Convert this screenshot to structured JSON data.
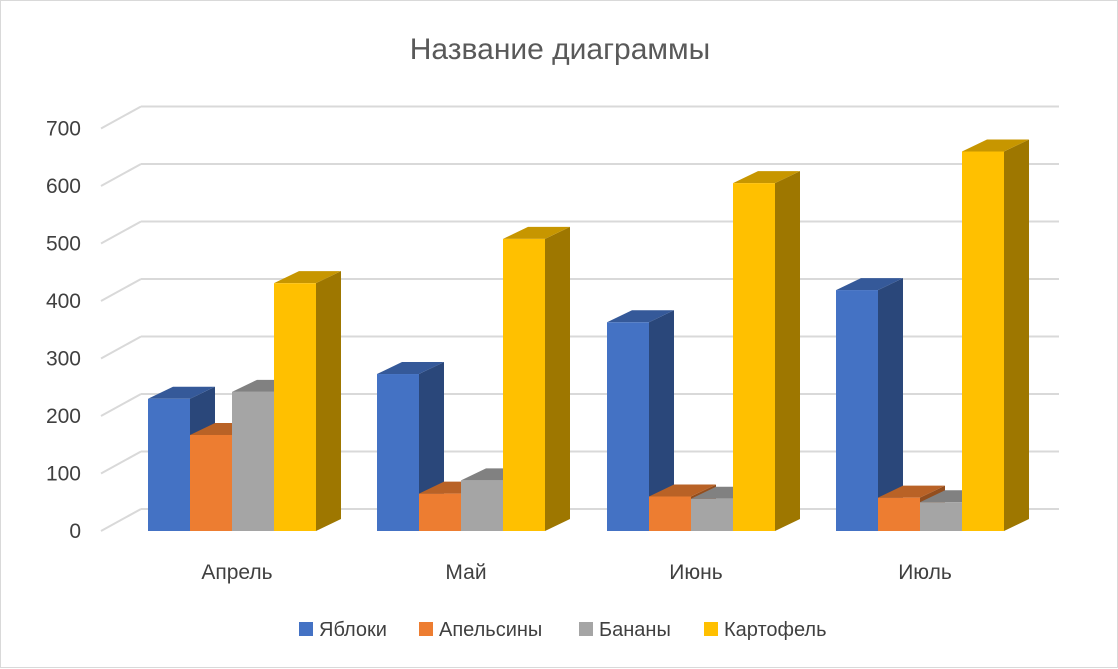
{
  "chart_data": {
    "type": "bar",
    "title": "Название диаграммы",
    "categories": [
      "Апрель",
      "Май",
      "Июнь",
      "Июль"
    ],
    "series": [
      {
        "name": "Яблоки",
        "values": [
          230,
          273,
          363,
          419
        ],
        "color": "#4472C4"
      },
      {
        "name": "Апельсины",
        "values": [
          167,
          65,
          60,
          58
        ],
        "color": "#ED7D31"
      },
      {
        "name": "Бананы",
        "values": [
          242,
          88,
          56,
          50
        ],
        "color": "#A5A5A5"
      },
      {
        "name": "Картофель",
        "values": [
          431,
          508,
          605,
          660
        ],
        "color": "#FFC000"
      }
    ],
    "yticks": [
      "0",
      "100",
      "200",
      "300",
      "400",
      "500",
      "600",
      "700"
    ],
    "ylim": [
      0,
      700
    ],
    "grid": true,
    "legend": "bottom",
    "style": "3d-clustered-column"
  }
}
